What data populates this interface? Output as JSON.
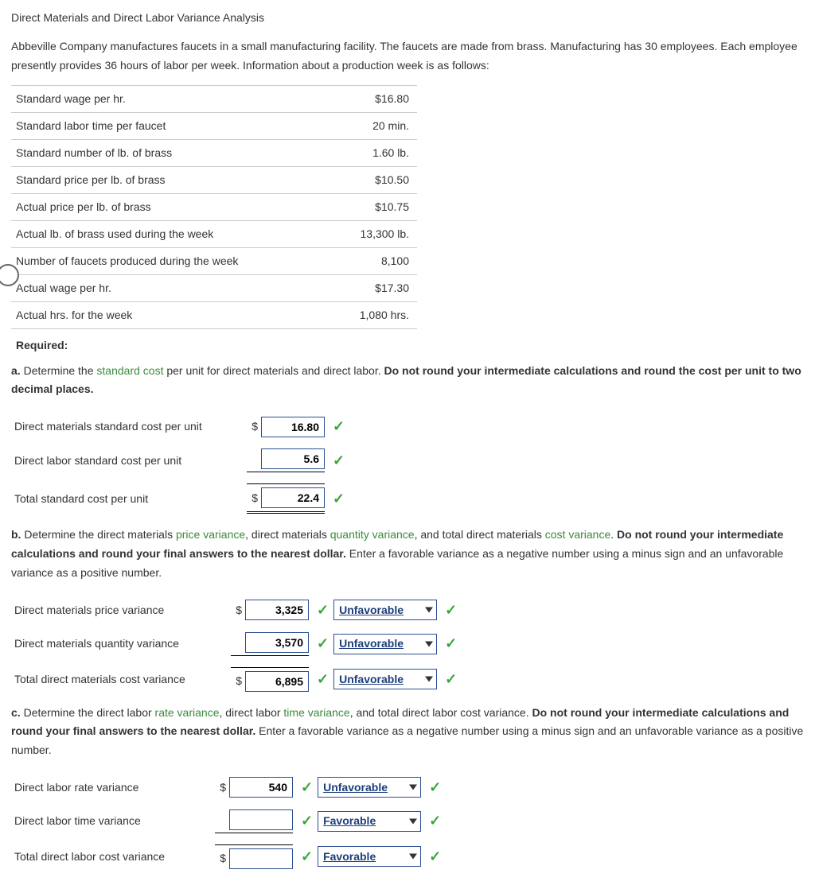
{
  "title": "Direct Materials and Direct Labor Variance Analysis",
  "intro": "Abbeville Company manufactures faucets in a small manufacturing facility. The faucets are made from brass. Manufacturing has 30 employees. Each employee presently provides 36 hours of labor per week. Information about a production week is as follows:",
  "info_table": [
    {
      "label": "Standard wage per hr.",
      "value": "$16.80"
    },
    {
      "label": "Standard labor time per faucet",
      "value": "20 min."
    },
    {
      "label": "Standard number of lb. of brass",
      "value": "1.60 lb."
    },
    {
      "label": "Standard price per lb. of brass",
      "value": "$10.50"
    },
    {
      "label": "Actual price per lb. of brass",
      "value": "$10.75"
    },
    {
      "label": "Actual lb. of brass used during the week",
      "value": "13,300 lb."
    },
    {
      "label": "Number of faucets produced during the week",
      "value": "8,100"
    },
    {
      "label": "Actual wage per hr.",
      "value": "$17.30"
    },
    {
      "label": "Actual hrs. for the week",
      "value": "1,080 hrs."
    }
  ],
  "required_label": "Required:",
  "qa": {
    "letter": "a.",
    "pre": "  Determine the ",
    "link": "standard cost",
    "post": " per unit for direct materials and direct labor. ",
    "bold": "Do not round your intermediate calculations and round the cost per unit to two decimal places."
  },
  "a_rows": [
    {
      "label": "Direct materials standard cost per unit",
      "prefix": "$",
      "value": "16.80"
    },
    {
      "label": "Direct labor standard cost per unit",
      "prefix": "",
      "value": "5.6"
    },
    {
      "label": "Total standard cost per unit",
      "prefix": "$",
      "value": "22.4"
    }
  ],
  "qb": {
    "letter": "b.",
    "parts": [
      {
        "t": "  Determine the direct materials "
      },
      {
        "t": "price variance",
        "g": true
      },
      {
        "t": ", direct materials "
      },
      {
        "t": "quantity variance",
        "g": true
      },
      {
        "t": ", and total direct materials "
      },
      {
        "t": "cost variance",
        "g": true
      },
      {
        "t": ". "
      }
    ],
    "bold": "Do not round your intermediate calculations and round your final answers to the nearest dollar.",
    "tail": " Enter a favorable variance as a negative number using a minus sign and an unfavorable variance as a positive number."
  },
  "b_rows": [
    {
      "label": "Direct materials price variance",
      "prefix": "$",
      "value": "3,325",
      "sel": "Unfavorable"
    },
    {
      "label": "Direct materials quantity variance",
      "prefix": "",
      "value": "3,570",
      "sel": "Unfavorable"
    },
    {
      "label": "Total direct materials cost variance",
      "prefix": "$",
      "value": "6,895",
      "sel": "Unfavorable"
    }
  ],
  "qc": {
    "letter": "c.",
    "parts": [
      {
        "t": "  Determine the direct labor "
      },
      {
        "t": "rate variance",
        "g": true
      },
      {
        "t": ", direct labor "
      },
      {
        "t": "time variance",
        "g": true
      },
      {
        "t": ", and total direct labor cost variance. "
      }
    ],
    "bold": "Do not round your intermediate calculations and round your final answers to the nearest dollar.",
    "tail": " Enter a favorable variance as a negative number using a minus sign and an unfavorable variance as a positive number."
  },
  "c_rows": [
    {
      "label": "Direct labor rate variance",
      "prefix": "$",
      "value": "540",
      "sel": "Unfavorable"
    },
    {
      "label": "Direct labor time variance",
      "prefix": "",
      "value": "",
      "sel": "Favorable"
    },
    {
      "label": "Total direct labor cost variance",
      "prefix": "$",
      "value": "",
      "sel": "Favorable"
    }
  ],
  "checkmark": "✓"
}
